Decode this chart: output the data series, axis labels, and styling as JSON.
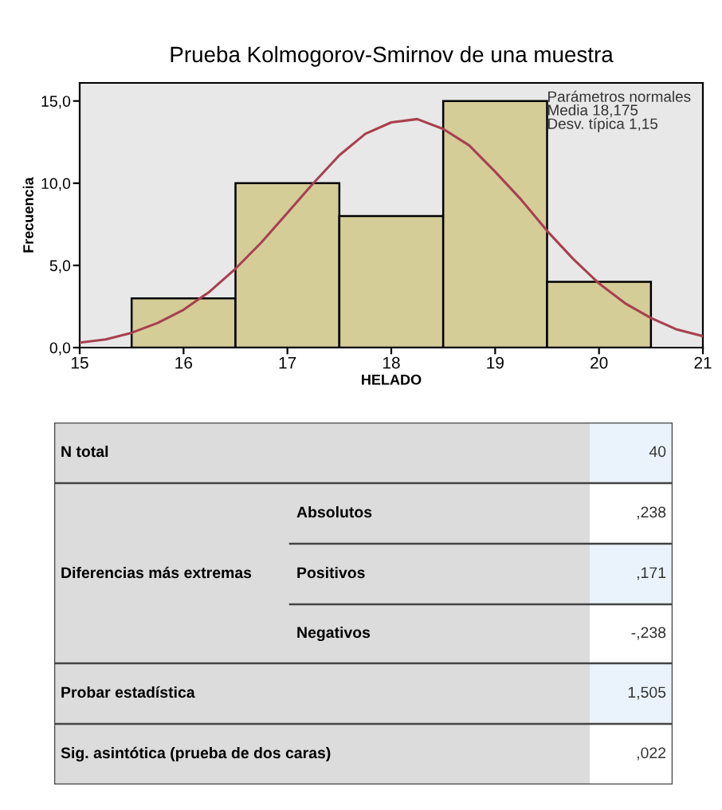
{
  "chart_data": [
    {
      "type": "histogram",
      "title": "Prueba Kolmogorov-Smirnov de una muestra",
      "xlabel": "HELADO",
      "ylabel": "Frecuencia",
      "bins": [
        15.5,
        16.5,
        17.5,
        18.5,
        19.5,
        20.5
      ],
      "values": [
        3,
        10,
        8,
        15,
        4
      ],
      "color": "#d4cd98",
      "series": [
        {
          "type": "line",
          "color": "#a8404e",
          "x": [
            15,
            15.25,
            15.5,
            15.75,
            16,
            16.25,
            16.5,
            16.75,
            17,
            17.25,
            17.5,
            17.75,
            18,
            18.25,
            18.5,
            18.75,
            19,
            19.25,
            19.5,
            19.75,
            20,
            20.25,
            20.5,
            20.75,
            21
          ],
          "values": [
            0.3,
            0.5,
            0.9,
            1.5,
            2.3,
            3.4,
            4.8,
            6.4,
            8.2,
            10.0,
            11.7,
            13.0,
            13.7,
            13.9,
            13.3,
            12.3,
            10.7,
            9.0,
            7.1,
            5.4,
            3.9,
            2.7,
            1.8,
            1.1,
            0.7
          ]
        }
      ],
      "xlim": [
        15,
        21
      ],
      "xticks": [
        15,
        16,
        17,
        18,
        19,
        20,
        21
      ],
      "ylim": [
        0,
        16.1
      ],
      "yticks": [
        {
          "value": 0,
          "label": "0,0"
        },
        {
          "value": 5,
          "label": "5,0"
        },
        {
          "value": 10,
          "label": "10,0"
        },
        {
          "value": 15,
          "label": "15,0"
        }
      ],
      "annotations": [
        "Parámetros normales\nMedia 18,175\nDesv. típica 1,15"
      ],
      "grid": false,
      "legend": false
    },
    {
      "type": "other",
      "annotations": [
        "N total",
        "40",
        "Diferencias más extremas",
        "Absolutos",
        ",238",
        "Positivos",
        ",171",
        "Negativos",
        "-,238",
        "Probar estadística",
        "1,505",
        "Sig. asintótica (prueba de dos caras)",
        ",022"
      ]
    }
  ]
}
